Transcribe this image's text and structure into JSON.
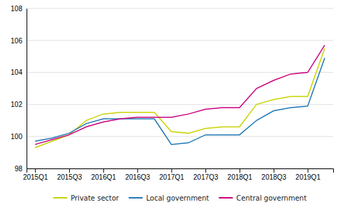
{
  "chart_data": {
    "type": "line",
    "categories": [
      "2015Q1",
      null,
      "2015Q3",
      null,
      "2016Q1",
      null,
      "2016Q3",
      null,
      "2017Q1",
      null,
      "2017Q3",
      null,
      "2018Q1",
      null,
      "2018Q3",
      null,
      "2019Q1",
      null
    ],
    "series": [
      {
        "name": "Private sector",
        "color": "#c8d400",
        "values": [
          99.3,
          99.7,
          100.1,
          101.0,
          101.4,
          101.5,
          101.5,
          101.5,
          100.3,
          100.2,
          100.5,
          100.6,
          100.6,
          102.0,
          102.3,
          102.5,
          102.5,
          105.5
        ]
      },
      {
        "name": "Local government",
        "color": "#1f78b4",
        "values": [
          99.7,
          99.9,
          100.2,
          100.8,
          101.1,
          101.1,
          101.1,
          101.1,
          99.5,
          99.6,
          100.1,
          100.1,
          100.1,
          101.0,
          101.6,
          101.8,
          101.9,
          104.9
        ]
      },
      {
        "name": "Central government",
        "color": "#c8007d",
        "values": [
          99.5,
          99.8,
          100.1,
          100.6,
          100.9,
          101.1,
          101.2,
          101.2,
          101.2,
          101.4,
          101.7,
          101.8,
          101.8,
          103.0,
          103.5,
          103.9,
          104.0,
          105.7
        ]
      }
    ],
    "ylim": [
      98,
      108
    ],
    "yticks": [
      98,
      100,
      102,
      104,
      106,
      108
    ],
    "grid": true,
    "legend": "bottom"
  }
}
